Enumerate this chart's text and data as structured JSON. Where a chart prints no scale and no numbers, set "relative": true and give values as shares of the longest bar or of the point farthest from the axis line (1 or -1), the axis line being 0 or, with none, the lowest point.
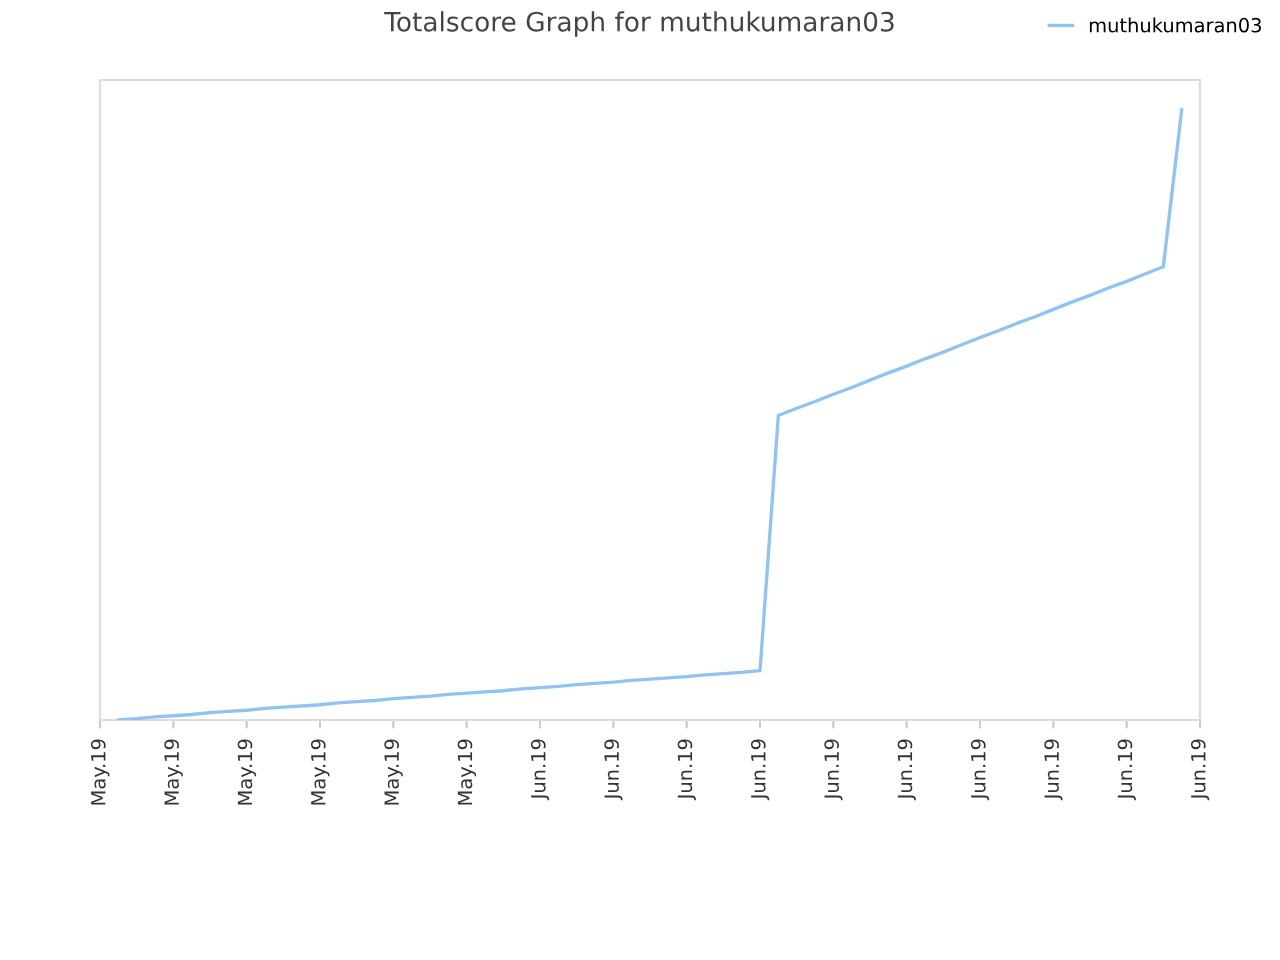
{
  "chart_data": {
    "type": "line",
    "title": "Totalscore Graph for muthukumaran03",
    "relative": true,
    "categories": [
      "May.19",
      null,
      null,
      null,
      "May.19",
      null,
      null,
      null,
      "May.19",
      null,
      null,
      null,
      "May.19",
      null,
      null,
      null,
      "May.19",
      null,
      null,
      null,
      "May.19",
      null,
      null,
      null,
      "Jun.19",
      null,
      null,
      null,
      "Jun.19",
      null,
      null,
      null,
      "Jun.19",
      null,
      null,
      null,
      "Jun.19",
      null,
      null,
      null,
      "Jun.19",
      null,
      null,
      null,
      "Jun.19",
      null,
      null,
      null,
      "Jun.19",
      null,
      null,
      null,
      "Jun.19",
      null,
      null,
      null,
      "Jun.19",
      null,
      null,
      null,
      "Jun.19"
    ],
    "series": [
      {
        "name": "muthukumaran03",
        "color": "#90c4f0",
        "values": [
          null,
          0.0,
          0.002,
          0.005,
          0.007,
          0.009,
          0.012,
          0.014,
          0.016,
          0.019,
          0.021,
          0.023,
          0.025,
          0.028,
          0.03,
          0.032,
          0.035,
          0.037,
          0.039,
          0.042,
          0.044,
          0.046,
          0.048,
          0.051,
          0.053,
          0.055,
          0.058,
          0.06,
          0.062,
          0.065,
          0.067,
          0.069,
          0.071,
          0.074,
          0.076,
          0.078,
          0.081,
          0.499,
          0.511,
          0.522,
          0.534,
          0.545,
          0.557,
          0.569,
          0.58,
          0.592,
          0.603,
          0.615,
          0.627,
          0.638,
          0.65,
          0.661,
          0.673,
          0.685,
          0.696,
          0.708,
          0.719,
          0.731,
          0.743,
          1.0,
          null
        ]
      }
    ],
    "legend": "top right",
    "marker": "none",
    "line_style": "solid"
  }
}
